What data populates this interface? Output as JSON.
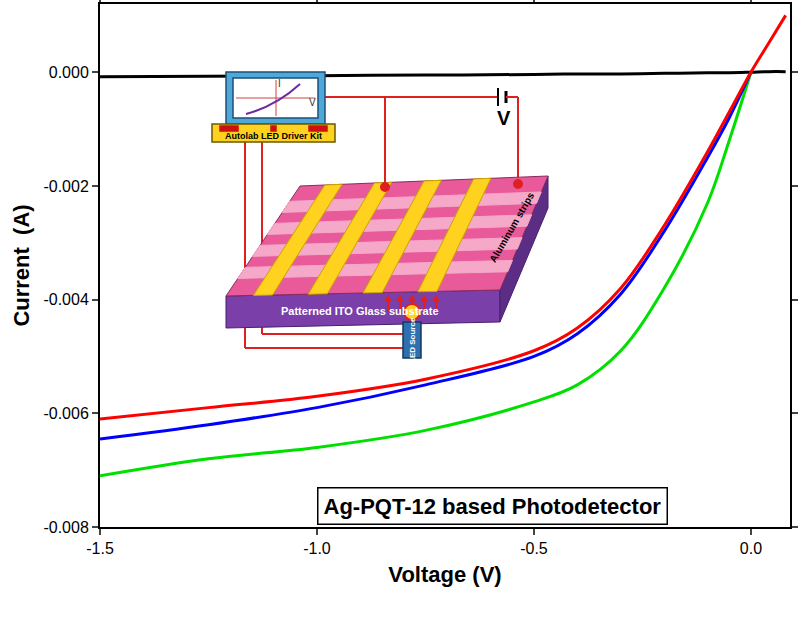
{
  "chart_data": {
    "type": "line",
    "x_label": "Voltage (V)",
    "y_label": "Current  (A)",
    "x": [
      -1.5,
      -1.25,
      -1.0,
      -0.75,
      -0.5,
      -0.4,
      -0.3,
      -0.2,
      -0.1,
      -0.05,
      0.0,
      0.04,
      0.08
    ],
    "series": [
      {
        "color": "#000000",
        "values": [
          -8e-05,
          -7e-05,
          -6e-05,
          -5e-05,
          -4e-05,
          -3e-05,
          -3e-05,
          -2e-05,
          -1e-05,
          -1e-05,
          0.0,
          1e-05,
          1e-05
        ]
      },
      {
        "color": "#00e000",
        "values": [
          -0.0071,
          -0.0068,
          -0.0066,
          -0.0063,
          -0.0058,
          -0.0055,
          -0.0049,
          -0.0038,
          -0.0023,
          -0.0012,
          0.0,
          null,
          null
        ]
      },
      {
        "color": "#0000ff",
        "values": [
          -0.00645,
          -0.0062,
          -0.0059,
          -0.0055,
          -0.005,
          -0.0046,
          -0.0039,
          -0.0028,
          -0.0015,
          -0.0008,
          0.0,
          null,
          null
        ]
      },
      {
        "color": "#ff0000",
        "values": [
          -0.0061,
          -0.0059,
          -0.0057,
          -0.0054,
          -0.0049,
          -0.0045,
          -0.0038,
          -0.0027,
          -0.0014,
          -0.0007,
          0.0,
          0.0005,
          0.001
        ]
      }
    ],
    "xlim": [
      -1.5,
      0.09
    ],
    "ylim": [
      -0.008,
      0.0012
    ],
    "xticks": [
      {
        "value": -1.5,
        "label": "-1.5"
      },
      {
        "value": -1.0,
        "label": "-1.0"
      },
      {
        "value": -0.5,
        "label": "-0.5"
      },
      {
        "value": 0,
        "label": "0.0"
      }
    ],
    "yticks": [
      {
        "value": -0.008,
        "label": "-0.008"
      },
      {
        "value": -0.006,
        "label": "-0.006"
      },
      {
        "value": -0.004,
        "label": "-0.004"
      },
      {
        "value": -0.002,
        "label": "-0.002"
      },
      {
        "value": 0,
        "label": "0.000"
      }
    ],
    "grid": false,
    "annotations": [
      {
        "text": "Ag-PQT-12 based Photodetector"
      },
      {
        "text": "I"
      },
      {
        "text": "V"
      },
      {
        "text": "Autolab LED Driver Kit"
      },
      {
        "text": "V"
      },
      {
        "text": "Aluminum strips"
      },
      {
        "text": "Patterned ITO Glass substrate"
      },
      {
        "text": "LED Source"
      }
    ]
  }
}
